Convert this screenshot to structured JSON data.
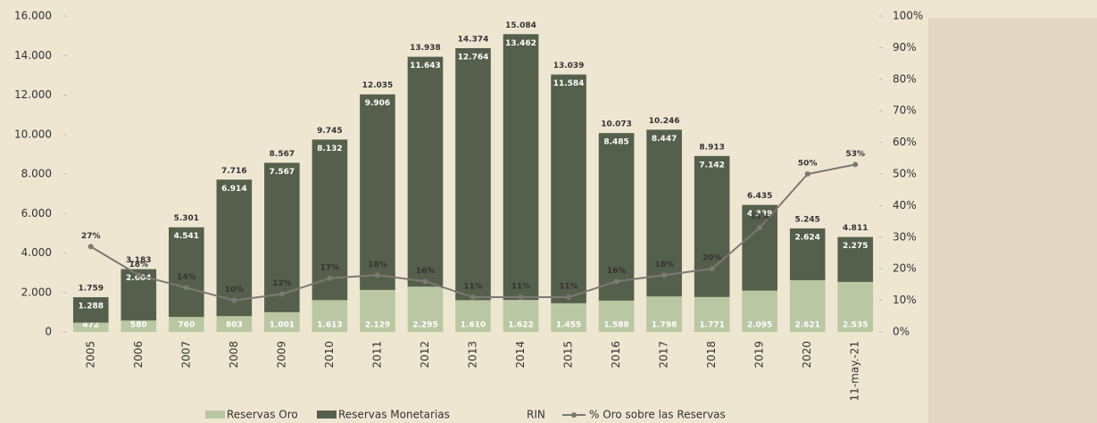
{
  "chart_data": {
    "type": "stacked-bar-line",
    "categories": [
      "2005",
      "2006",
      "2007",
      "2008",
      "2009",
      "2010",
      "2011",
      "2012",
      "2013",
      "2014",
      "2015",
      "2016",
      "2017",
      "2018",
      "2019",
      "2020",
      "11-may.-21"
    ],
    "series": [
      {
        "name": "Reservas Oro",
        "color": "#b9c7a2",
        "values": [
          472,
          580,
          760,
          803,
          1001,
          1613,
          2129,
          2295,
          1610,
          1622,
          1455,
          1588,
          1798,
          1771,
          2095,
          2621,
          2535
        ],
        "value_labels": [
          "472",
          "580",
          "760",
          "803",
          "1.001",
          "1.613",
          "2.129",
          "2.295",
          "1.610",
          "1.622",
          "1.455",
          "1.588",
          "1.798",
          "1.771",
          "2.095",
          "2.621",
          "2.535"
        ]
      },
      {
        "name": "Reservas Monetarias",
        "color": "#55604c",
        "values": [
          1288,
          2604,
          4541,
          6914,
          7567,
          8132,
          9906,
          11643,
          12764,
          13462,
          11584,
          8485,
          8447,
          7142,
          4339,
          2624,
          2275
        ],
        "value_labels": [
          "1.288",
          "2.604",
          "4.541",
          "6.914",
          "7.567",
          "8.132",
          "9.906",
          "11.643",
          "12.764",
          "13.462",
          "11.584",
          "8.485",
          "8.447",
          "7.142",
          "4.339",
          "2.624",
          "2.275"
        ]
      },
      {
        "name": "RIN",
        "values": [
          1759,
          3183,
          5301,
          7716,
          8567,
          9745,
          12035,
          13938,
          14374,
          15084,
          13039,
          10073,
          10246,
          8913,
          6435,
          5245,
          4811
        ],
        "value_labels": [
          "1.759",
          "3.183",
          "5.301",
          "7.716",
          "8.567",
          "9.745",
          "12.035",
          "13.938",
          "14.374",
          "15.084",
          "13.039",
          "10.073",
          "10.246",
          "8.913",
          "6.435",
          "5.245",
          "4.811"
        ]
      },
      {
        "name": "% Oro sobre las Reservas",
        "color": "#7a7a72",
        "axis": "y2",
        "values": [
          27,
          18,
          14,
          10,
          12,
          17,
          18,
          16,
          11,
          11,
          11,
          16,
          18,
          20,
          33,
          50,
          53
        ],
        "value_labels": [
          "27%",
          "18%",
          "14%",
          "10%",
          "12%",
          "17%",
          "18%",
          "16%",
          "11%",
          "11%",
          "11%",
          "16%",
          "18%",
          "20%",
          "33%",
          "50%",
          "53%"
        ]
      }
    ],
    "ylim": [
      0,
      16000
    ],
    "yticks": [
      0,
      {
        "value": 2000,
        "label": "2.000"
      },
      {
        "value": 4000,
        "label": "4.000"
      },
      {
        "value": 6000,
        "label": "6.000"
      },
      {
        "value": 8000,
        "label": "8.000"
      },
      {
        "value": 10000,
        "label": "10.000"
      },
      {
        "value": 12000,
        "label": "12.000"
      },
      {
        "value": 14000,
        "label": "14.000"
      },
      {
        "value": 16000,
        "label": "16.000"
      }
    ],
    "y2lim": [
      0,
      100
    ],
    "y2ticks": [
      {
        "value": 0,
        "label": "0%"
      },
      {
        "value": 10,
        "label": "10%"
      },
      {
        "value": 20,
        "label": "20%"
      },
      {
        "value": 30,
        "label": "30%"
      },
      {
        "value": 40,
        "label": "40%"
      },
      {
        "value": 50,
        "label": "50%"
      },
      {
        "value": 60,
        "label": "60%"
      },
      {
        "value": 70,
        "label": "70%"
      },
      {
        "value": 80,
        "label": "80%"
      },
      {
        "value": 90,
        "label": "90%"
      },
      {
        "value": 100,
        "label": "100%"
      }
    ]
  }
}
